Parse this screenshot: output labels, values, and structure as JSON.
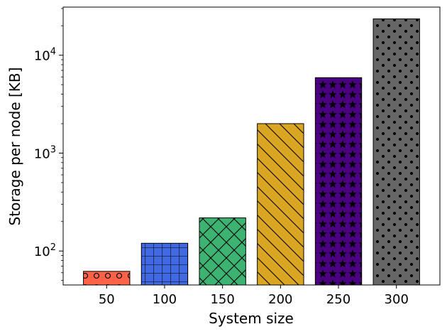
{
  "chart_data": {
    "type": "bar",
    "categories": [
      "50",
      "100",
      "150",
      "200",
      "250",
      "300"
    ],
    "values": [
      62,
      120,
      218,
      2000,
      5900,
      23500
    ],
    "xlabel": "System size",
    "ylabel": "Storage per node [KB]",
    "yscale": "log",
    "ylim": [
      45,
      31000
    ],
    "ytick_labels": [
      {
        "value": 100,
        "base": "10",
        "exp": "2"
      },
      {
        "value": 1000,
        "base": "10",
        "exp": "3"
      },
      {
        "value": 10000,
        "base": "10",
        "exp": "4"
      }
    ],
    "grid": false,
    "bars": [
      {
        "color": "#ff6347",
        "hatch": "circles"
      },
      {
        "color": "#4169e1",
        "hatch": "grid"
      },
      {
        "color": "#3cb371",
        "hatch": "crosshatch"
      },
      {
        "color": "#daa520",
        "hatch": "diagonal"
      },
      {
        "color": "#4b0082",
        "hatch": "stars"
      },
      {
        "color": "#666666",
        "hatch": "dots"
      }
    ]
  }
}
